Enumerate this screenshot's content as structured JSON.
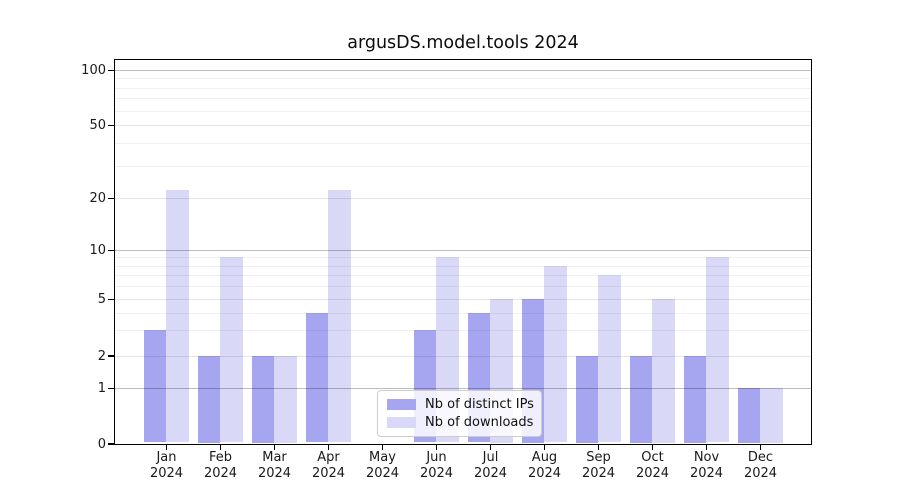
{
  "title": "argusDS.model.tools 2024",
  "chart_data": {
    "type": "bar",
    "title": "argusDS.model.tools 2024",
    "categories": [
      "Jan 2024",
      "Feb 2024",
      "Mar 2024",
      "Apr 2024",
      "May 2024",
      "Jun 2024",
      "Jul 2024",
      "Aug 2024",
      "Sep 2024",
      "Oct 2024",
      "Nov 2024",
      "Dec 2024"
    ],
    "series": [
      {
        "name": "Nb of distinct IPs",
        "color": "#a6a6f0",
        "values": [
          3,
          2,
          2,
          4,
          0,
          3,
          4,
          5,
          2,
          2,
          2,
          1
        ]
      },
      {
        "name": "Nb of downloads",
        "color": "#d9d9f7",
        "values": [
          22,
          9,
          2,
          22,
          0,
          9,
          5,
          8,
          7,
          5,
          9,
          1
        ]
      }
    ],
    "yscale": "symlog",
    "yticks": [
      0,
      1,
      2,
      5,
      10,
      20,
      50,
      100
    ],
    "ylim": [
      0,
      115
    ],
    "grid": true,
    "grid_over_bars": true,
    "legend_position": "lower center",
    "xlabel": "",
    "ylabel": ""
  },
  "colors": {
    "distinct_ips": "#a6a6f0",
    "downloads": "#d9d9f7",
    "spine": "#000000",
    "text": "#1a1a1a"
  }
}
